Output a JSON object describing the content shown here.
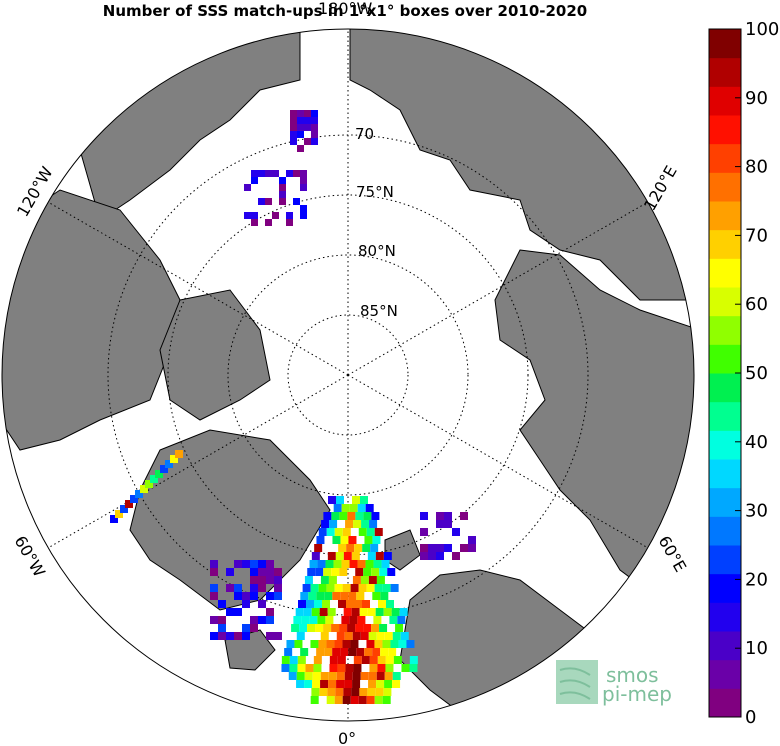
{
  "title": "Number of SSS match-ups in 1°x1° boxes over 2010-2020",
  "map": {
    "projection": "north-polar-stereographic",
    "meridian_labels": {
      "top": "180°W",
      "upper_left": "120°W",
      "lower_left": "60°W",
      "bottom": "0°",
      "lower_right": "60°E",
      "upper_right": "120°E"
    },
    "parallel_labels": [
      "70",
      "75°N",
      "80°N",
      "85°N"
    ],
    "colors": {
      "land": "#808080",
      "ocean": "#ffffff",
      "coastline": "#000000",
      "grid": "#000000"
    }
  },
  "colorbar": {
    "min": 0,
    "max": 100,
    "ticks": [
      "100",
      "90",
      "80",
      "70",
      "60",
      "50",
      "40",
      "30",
      "20",
      "10",
      "0"
    ],
    "colors": [
      "#800080",
      "#6a00a8",
      "#4a00c8",
      "#2200ee",
      "#0000ff",
      "#0040ff",
      "#0078ff",
      "#00a8ff",
      "#00d8ff",
      "#00ffe0",
      "#00ff90",
      "#00f050",
      "#40ff00",
      "#90ff00",
      "#d8ff00",
      "#ffff00",
      "#ffd000",
      "#ffa000",
      "#ff7000",
      "#ff4000",
      "#ff1000",
      "#e00000",
      "#b00000",
      "#800000"
    ]
  },
  "logo": {
    "line1": "smos",
    "line2": "pi-mep"
  }
}
